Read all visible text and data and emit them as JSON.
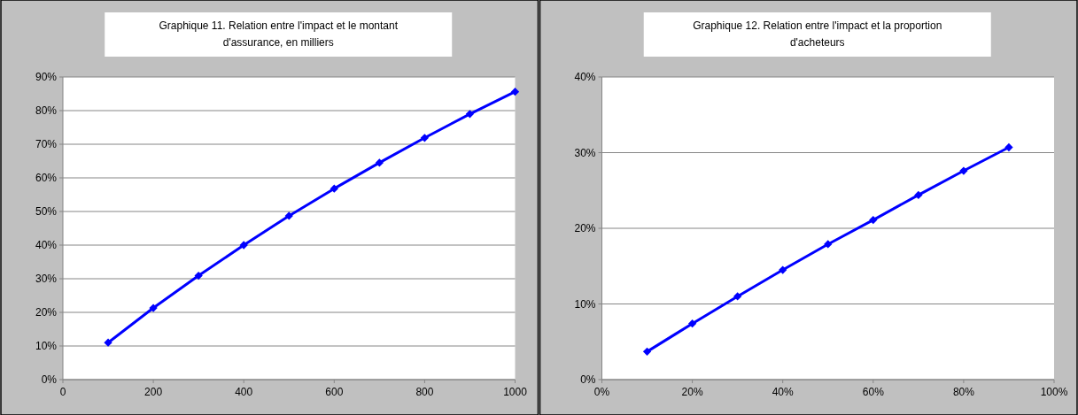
{
  "chart_data": [
    {
      "type": "line",
      "title": "Graphique 11. Relation entre l'impact et le montant d'assurance, en milliers",
      "x": [
        100,
        200,
        300,
        400,
        500,
        600,
        700,
        800,
        900,
        1000
      ],
      "series": [
        {
          "color": "#0000ff",
          "values": [
            11.0,
            21.3,
            30.9,
            40.0,
            48.7,
            56.8,
            64.5,
            71.9,
            79.0,
            85.6
          ]
        }
      ],
      "xlim": [
        0,
        1000
      ],
      "xticks": [
        0,
        200,
        400,
        600,
        800,
        1000
      ],
      "ylim": [
        0,
        90
      ],
      "yticks": [
        {
          "value": 0,
          "label": "0%"
        },
        {
          "value": 10,
          "label": "10%"
        },
        {
          "value": 20,
          "label": "20%"
        },
        {
          "value": 30,
          "label": "30%"
        },
        {
          "value": 40,
          "label": "40%"
        },
        {
          "value": 50,
          "label": "50%"
        },
        {
          "value": 60,
          "label": "60%"
        },
        {
          "value": 70,
          "label": "70%"
        },
        {
          "value": 80,
          "label": "80%"
        },
        {
          "value": 90,
          "label": "90%"
        }
      ],
      "grid": "y",
      "marker": "diamond",
      "line_style": "solid"
    },
    {
      "type": "line",
      "title": "Graphique 12. Relation entre l'impact et la proportion d'acheteurs",
      "x": [
        10,
        20,
        30,
        40,
        50,
        60,
        70,
        80,
        90
      ],
      "series": [
        {
          "color": "#0000ff",
          "values": [
            3.7,
            7.4,
            11.0,
            14.5,
            17.9,
            21.1,
            24.4,
            27.6,
            30.7
          ]
        }
      ],
      "xlim": [
        0,
        100
      ],
      "xticks": [
        {
          "value": 0,
          "label": "0%"
        },
        {
          "value": 20,
          "label": "20%"
        },
        {
          "value": 40,
          "label": "40%"
        },
        {
          "value": 60,
          "label": "60%"
        },
        {
          "value": 80,
          "label": "80%"
        },
        {
          "value": 100,
          "label": "100%"
        }
      ],
      "ylim": [
        0,
        40
      ],
      "yticks": [
        {
          "value": 0,
          "label": "0%"
        },
        {
          "value": 10,
          "label": "10%"
        },
        {
          "value": 20,
          "label": "20%"
        },
        {
          "value": 30,
          "label": "30%"
        },
        {
          "value": 40,
          "label": "40%"
        }
      ],
      "grid": "y",
      "marker": "diamond",
      "line_style": "solid"
    }
  ]
}
